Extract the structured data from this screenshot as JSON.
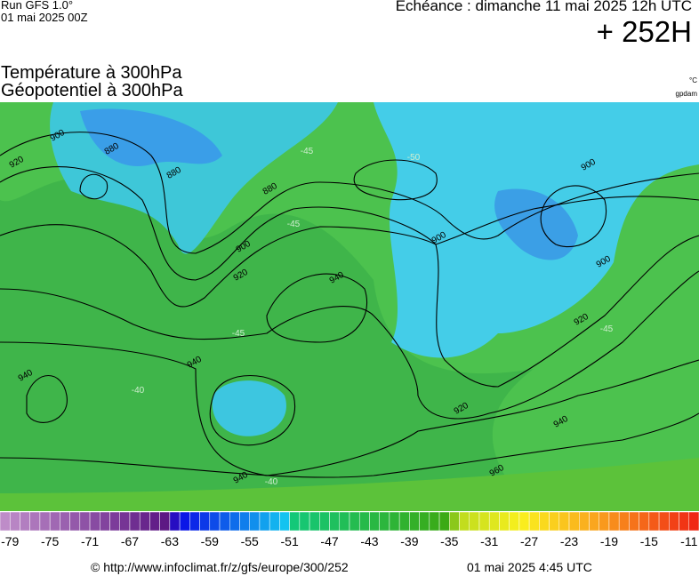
{
  "header": {
    "run": "Run GFS 1.0°",
    "run_date": "01 mai 2025 00Z",
    "valid": "Echéance : dimanche 11 mai 2025 12h UTC",
    "lead": "+ 252H",
    "title1": "Température à 300hPa",
    "title2": "Géopotentiel à 300hPa",
    "unit_temp": "°C",
    "unit_geo": "gpdam"
  },
  "map": {
    "contour_labels": [
      "900",
      "880",
      "920",
      "880",
      "880",
      "900",
      "920",
      "940",
      "900",
      "900",
      "900",
      "920",
      "940",
      "940",
      "920",
      "940",
      "960",
      "940"
    ],
    "temp_labels": [
      "-45",
      "-50",
      "-45",
      "-45",
      "-40",
      "-40",
      "-45"
    ]
  },
  "colorbar": {
    "lim": [
      -80,
      -10
    ],
    "ticks": [
      -79,
      -75,
      -71,
      -67,
      -63,
      -59,
      -55,
      -51,
      -47,
      -43,
      -39,
      -35,
      -31,
      -27,
      -23,
      -19,
      -15,
      -11
    ]
  },
  "footer": {
    "source": "© http://www.infoclimat.fr/z/gfs/europe/300/252",
    "generated": "01 mai 2025  4:45 UTC"
  }
}
